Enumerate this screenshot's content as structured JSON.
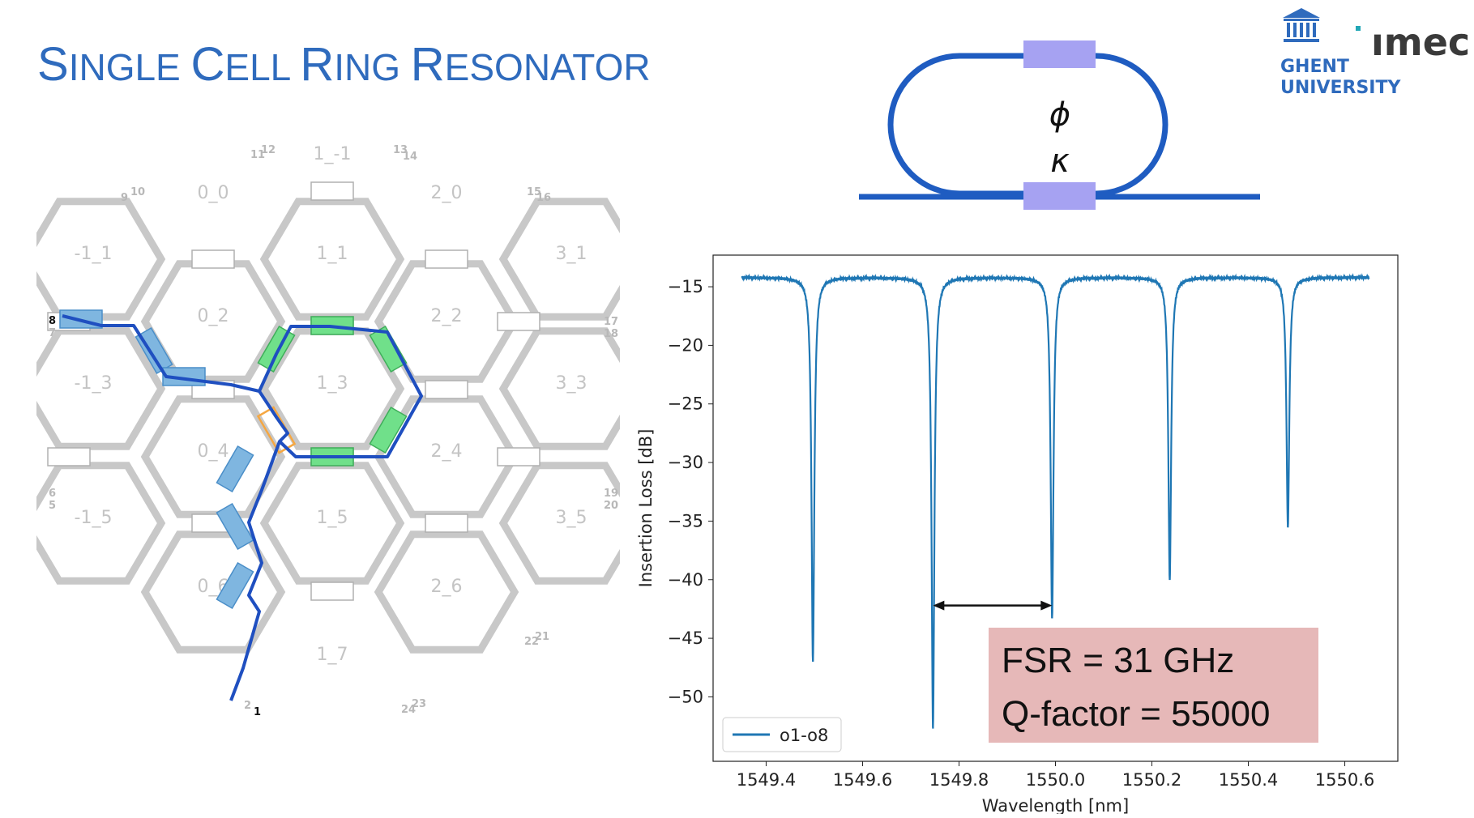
{
  "slide": {
    "title_parts": [
      {
        "cap": "S",
        "rest": "INGLE "
      },
      {
        "cap": "C",
        "rest": "ELL "
      },
      {
        "cap": "R",
        "rest": "ING "
      },
      {
        "cap": "R",
        "rest": "ESONATOR"
      }
    ]
  },
  "logos": {
    "university_line1": "GHENT",
    "university_line2": "UNIVERSITY",
    "imec": "ımec"
  },
  "ring_diagram": {
    "phase_symbol": "ϕ",
    "coupling_symbol": "κ",
    "waveguide_color": "#1f5cc1",
    "element_color": "#a6a2f2"
  },
  "lattice": {
    "cell_labels": [
      "1_-1",
      "0_0",
      "2_0",
      "-1_1",
      "1_1",
      "3_1",
      "0_2",
      "2_2",
      "-1_3",
      "1_3",
      "3_3",
      "0_4",
      "2_4",
      "-1_5",
      "1_5",
      "3_5",
      "0_6",
      "2_6",
      "1_7"
    ],
    "port_labels": [
      "11",
      "12",
      "13",
      "14",
      "9",
      "10",
      "15",
      "16",
      "8",
      "7",
      "17",
      "18",
      "6",
      "5",
      "19",
      "20",
      "22",
      "21",
      "2",
      "1",
      "24",
      "23"
    ],
    "colors": {
      "path": "#1f4fc0",
      "tunable": "#7fb6e0",
      "ring": "#70e08a",
      "crossing": "#f5a742",
      "waveguide": "#c8c8c8"
    }
  },
  "insights": {
    "fsr": "FSR = 31 GHz",
    "q_factor": "Q-factor = 55000"
  },
  "chart_data": {
    "type": "line",
    "title": "",
    "xlabel": "Wavelength [nm]",
    "ylabel": "Insertion Loss [dB]",
    "xlim": [
      1549.29,
      1550.71
    ],
    "ylim": [
      -55.5,
      -12.3
    ],
    "xticks": [
      1549.4,
      1549.6,
      1549.8,
      1550.0,
      1550.2,
      1550.4,
      1550.6
    ],
    "xtick_labels": [
      "1549.4",
      "1549.6",
      "1549.8",
      "1550.0",
      "1550.2",
      "1550.4",
      "1550.6"
    ],
    "yticks": [
      -15,
      -20,
      -25,
      -30,
      -35,
      -40,
      -45,
      -50
    ],
    "ytick_labels": [
      "−15",
      "−20",
      "−25",
      "−30",
      "−35",
      "−40",
      "−45",
      "−50"
    ],
    "grid": false,
    "legend": "lower-left",
    "series": [
      {
        "name": "o1-o8",
        "color": "#1f77b4",
        "x_start": 1549.35,
        "x_end": 1550.65,
        "baseline": -14.2,
        "resonances": [
          {
            "center": 1549.497,
            "min": -47.0
          },
          {
            "center": 1549.746,
            "min": -52.6
          },
          {
            "center": 1549.993,
            "min": -43.3
          },
          {
            "center": 1550.237,
            "min": -40.0
          },
          {
            "center": 1550.482,
            "min": -35.5
          }
        ]
      }
    ],
    "annotations": [
      {
        "type": "double-arrow",
        "from": 1549.746,
        "to": 1549.993,
        "y": -42.2
      }
    ]
  }
}
